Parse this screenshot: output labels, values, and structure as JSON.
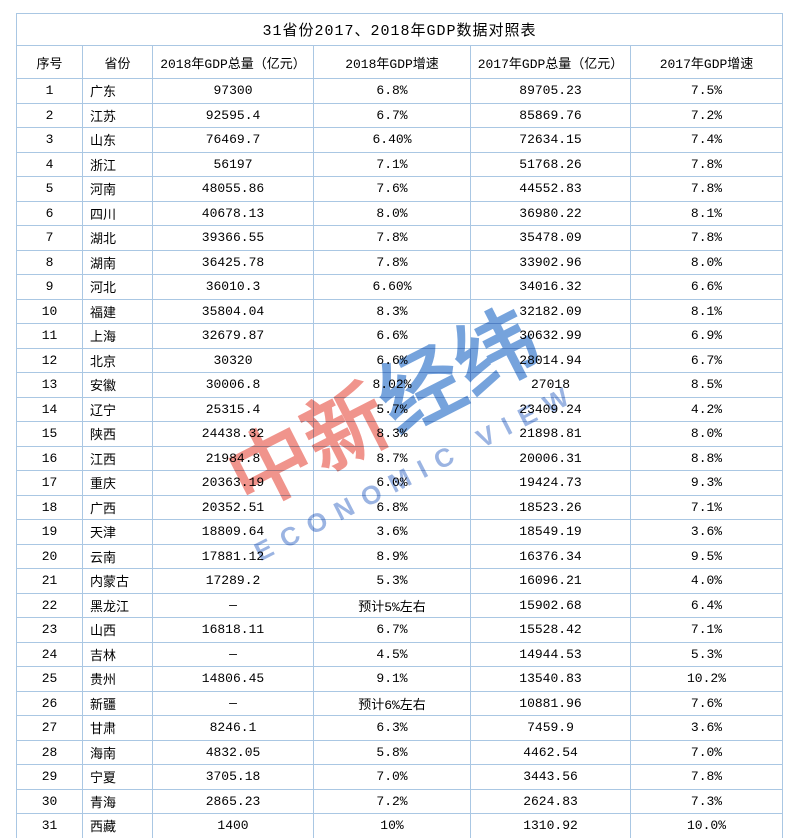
{
  "colors": {
    "border": "#aac7e3",
    "text": "#000000",
    "background": "#ffffff",
    "wm_red": "#f0948c",
    "wm_blue": "#76a3dc",
    "wm_en_blue": "#9bb4e2"
  },
  "chart_data": {
    "type": "table",
    "title": "31省份2017、2018年GDP数据对照表",
    "columns": [
      "序号",
      "省份",
      "2018年GDP总量（亿元）",
      "2018年GDP增速",
      "2017年GDP总量（亿元）",
      "2017年GDP增速"
    ],
    "rows": [
      [
        "1",
        "广东",
        "97300",
        "6.8%",
        "89705.23",
        "7.5%"
      ],
      [
        "2",
        "江苏",
        "92595.4",
        "6.7%",
        "85869.76",
        "7.2%"
      ],
      [
        "3",
        "山东",
        "76469.7",
        "6.40%",
        "72634.15",
        "7.4%"
      ],
      [
        "4",
        "浙江",
        "56197",
        "7.1%",
        "51768.26",
        "7.8%"
      ],
      [
        "5",
        "河南",
        "48055.86",
        "7.6%",
        "44552.83",
        "7.8%"
      ],
      [
        "6",
        "四川",
        "40678.13",
        "8.0%",
        "36980.22",
        "8.1%"
      ],
      [
        "7",
        "湖北",
        "39366.55",
        "7.8%",
        "35478.09",
        "7.8%"
      ],
      [
        "8",
        "湖南",
        "36425.78",
        "7.8%",
        "33902.96",
        "8.0%"
      ],
      [
        "9",
        "河北",
        "36010.3",
        "6.60%",
        "34016.32",
        "6.6%"
      ],
      [
        "10",
        "福建",
        "35804.04",
        "8.3%",
        "32182.09",
        "8.1%"
      ],
      [
        "11",
        "上海",
        "32679.87",
        "6.6%",
        "30632.99",
        "6.9%"
      ],
      [
        "12",
        "北京",
        "30320",
        "6.6%",
        "28014.94",
        "6.7%"
      ],
      [
        "13",
        "安徽",
        "30006.8",
        "8.02%",
        "27018",
        "8.5%"
      ],
      [
        "14",
        "辽宁",
        "25315.4",
        "5.7%",
        "23409.24",
        "4.2%"
      ],
      [
        "15",
        "陕西",
        "24438.32",
        "8.3%",
        "21898.81",
        "8.0%"
      ],
      [
        "16",
        "江西",
        "21984.8",
        "8.7%",
        "20006.31",
        "8.8%"
      ],
      [
        "17",
        "重庆",
        "20363.19",
        "6.0%",
        "19424.73",
        "9.3%"
      ],
      [
        "18",
        "广西",
        "20352.51",
        "6.8%",
        "18523.26",
        "7.1%"
      ],
      [
        "19",
        "天津",
        "18809.64",
        "3.6%",
        "18549.19",
        "3.6%"
      ],
      [
        "20",
        "云南",
        "17881.12",
        "8.9%",
        "16376.34",
        "9.5%"
      ],
      [
        "21",
        "内蒙古",
        "17289.2",
        "5.3%",
        "16096.21",
        "4.0%"
      ],
      [
        "22",
        "黑龙江",
        "—",
        "预计5%左右",
        "15902.68",
        "6.4%"
      ],
      [
        "23",
        "山西",
        "16818.11",
        "6.7%",
        "15528.42",
        "7.1%"
      ],
      [
        "24",
        "吉林",
        "—",
        "4.5%",
        "14944.53",
        "5.3%"
      ],
      [
        "25",
        "贵州",
        "14806.45",
        "9.1%",
        "13540.83",
        "10.2%"
      ],
      [
        "26",
        "新疆",
        "—",
        "预计6%左右",
        "10881.96",
        "7.6%"
      ],
      [
        "27",
        "甘肃",
        "8246.1",
        "6.3%",
        "7459.9",
        "3.6%"
      ],
      [
        "28",
        "海南",
        "4832.05",
        "5.8%",
        "4462.54",
        "7.0%"
      ],
      [
        "29",
        "宁夏",
        "3705.18",
        "7.0%",
        "3443.56",
        "7.8%"
      ],
      [
        "30",
        "青海",
        "2865.23",
        "7.2%",
        "2624.83",
        "7.3%"
      ],
      [
        "31",
        "西藏",
        "1400",
        "10%",
        "1310.92",
        "10.0%"
      ]
    ]
  },
  "watermark": {
    "cn_red": "中新",
    "cn_blue": "经纬",
    "en_text": "ECONOMIC VIEW"
  }
}
